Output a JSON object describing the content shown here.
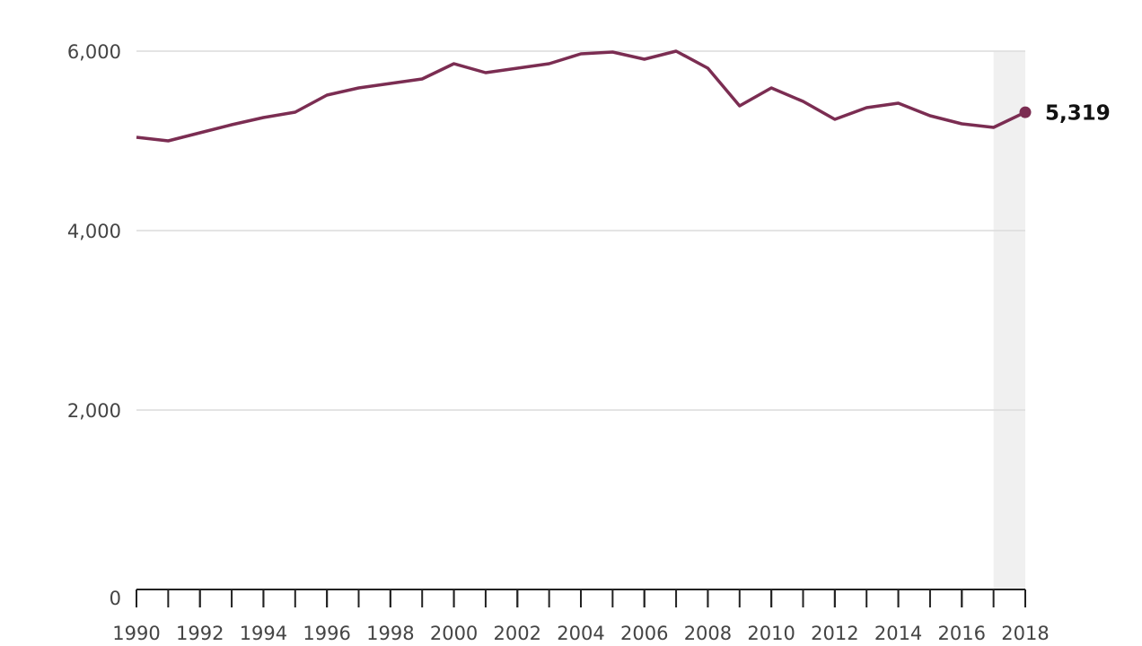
{
  "chart_data": {
    "type": "line",
    "x": [
      1990,
      1991,
      1992,
      1993,
      1994,
      1995,
      1996,
      1997,
      1998,
      1999,
      2000,
      2001,
      2002,
      2003,
      2004,
      2005,
      2006,
      2007,
      2008,
      2009,
      2010,
      2011,
      2012,
      2013,
      2014,
      2015,
      2016,
      2017,
      2018
    ],
    "values": [
      5040,
      5000,
      5090,
      5180,
      5260,
      5320,
      5510,
      5590,
      5640,
      5690,
      5860,
      5760,
      5810,
      5860,
      5970,
      5990,
      5910,
      6000,
      5810,
      5390,
      5590,
      5440,
      5240,
      5370,
      5420,
      5280,
      5190,
      5150,
      5319
    ],
    "value_labels": [
      null,
      null,
      null,
      null,
      null,
      null,
      null,
      null,
      null,
      null,
      null,
      null,
      null,
      null,
      null,
      null,
      null,
      null,
      null,
      null,
      null,
      null,
      null,
      null,
      null,
      null,
      null,
      null,
      "5,319"
    ],
    "color": "#7b2d52",
    "highlight": [
      2017,
      2018
    ],
    "highlight_color": "#f0f0f0",
    "xlim": [
      1990,
      2018
    ],
    "xticks": [
      1990,
      1992,
      1994,
      1996,
      1998,
      2000,
      2002,
      2004,
      2006,
      2008,
      2010,
      2012,
      2014,
      2016,
      2018
    ],
    "ylim": [
      0,
      6000
    ],
    "yticks": [
      0,
      {
        "value": 2000,
        "label": "2,000"
      },
      {
        "value": 4000,
        "label": "4,000"
      },
      {
        "value": 6000,
        "label": "6,000"
      }
    ],
    "grid": true
  }
}
